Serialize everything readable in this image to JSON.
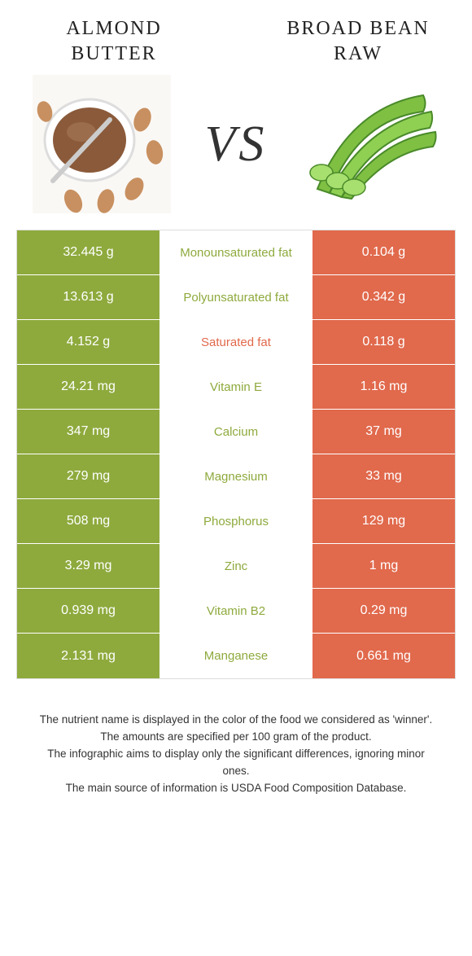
{
  "colors": {
    "left_bg": "#8eaa3d",
    "right_bg": "#e1694c",
    "left_text": "#8eaa3d",
    "right_text": "#e1694c",
    "almond_butter": "#8a5a3a",
    "almond_nut": "#c89060",
    "bean_pod": "#7fc043",
    "bean_dark": "#4a8a2a"
  },
  "header": {
    "left_title": "Almond Butter",
    "right_title": "Broad Bean Raw",
    "vs": "VS"
  },
  "table": {
    "rows": [
      {
        "left": "32.445 g",
        "label": "Monounsaturated fat",
        "right": "0.104 g",
        "winner": "left"
      },
      {
        "left": "13.613 g",
        "label": "Polyunsaturated fat",
        "right": "0.342 g",
        "winner": "left"
      },
      {
        "left": "4.152 g",
        "label": "Saturated fat",
        "right": "0.118 g",
        "winner": "right"
      },
      {
        "left": "24.21 mg",
        "label": "Vitamin E",
        "right": "1.16 mg",
        "winner": "left"
      },
      {
        "left": "347 mg",
        "label": "Calcium",
        "right": "37 mg",
        "winner": "left"
      },
      {
        "left": "279 mg",
        "label": "Magnesium",
        "right": "33 mg",
        "winner": "left"
      },
      {
        "left": "508 mg",
        "label": "Phosphorus",
        "right": "129 mg",
        "winner": "left"
      },
      {
        "left": "3.29 mg",
        "label": "Zinc",
        "right": "1 mg",
        "winner": "left"
      },
      {
        "left": "0.939 mg",
        "label": "Vitamin B2",
        "right": "0.29 mg",
        "winner": "left"
      },
      {
        "left": "2.131 mg",
        "label": "Manganese",
        "right": "0.661 mg",
        "winner": "left"
      }
    ]
  },
  "footnotes": [
    "The nutrient name is displayed in the color of the food we considered as 'winner'.",
    "The amounts are specified per 100 gram of the product.",
    "The infographic aims to display only the significant differences, ignoring minor ones.",
    "The main source of information is USDA Food Composition Database."
  ]
}
